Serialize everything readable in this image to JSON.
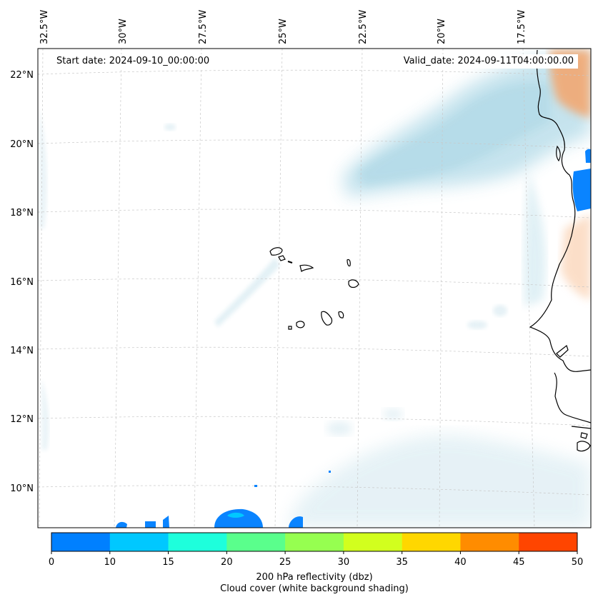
{
  "map": {
    "start_label": "Start date: 2024-09-10_00:00:00",
    "valid_label": "Valid_date: 2024-09-11T04:00:00.00",
    "lon_labels": [
      "32.5°W",
      "30°W",
      "27.5°W",
      "25°W",
      "22.5°W",
      "20°W",
      "17.5°W"
    ],
    "lat_labels": [
      "22°N",
      "20°N",
      "18°N",
      "16°N",
      "14°N",
      "12°N",
      "10°N"
    ]
  },
  "colorbar": {
    "ticks": [
      "0",
      "10",
      "15",
      "20",
      "25",
      "30",
      "35",
      "40",
      "45",
      "50"
    ],
    "colors": [
      "#0080ff",
      "#00c8ff",
      "#1effdc",
      "#5aff8c",
      "#96ff50",
      "#d2ff1e",
      "#ffd700",
      "#ff8c00",
      "#ff4500"
    ],
    "label": "200 hPa reflectivity (dbz)",
    "sublabel": "Cloud cover (white background shading)"
  },
  "palette": {
    "cloud": "#a9d6e5",
    "warm": "#f4a46a",
    "refl_low": "#0a84ff",
    "coast": "#000000",
    "grid": "#c8c8c8"
  }
}
